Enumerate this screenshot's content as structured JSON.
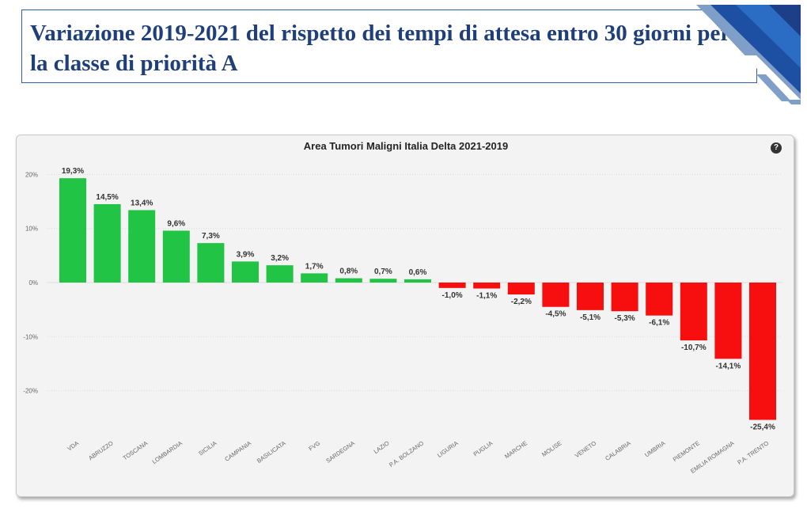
{
  "slide": {
    "title": "Variazione 2019-2021 del rispetto dei tempi di attesa entro 30 giorni per la classe di priorità A"
  },
  "colors": {
    "positive": "#21c444",
    "negative": "#f70e0e",
    "title": "#1f3f7a"
  },
  "icons": {
    "help": "help-circle-icon"
  },
  "help_glyph": "?",
  "chart_data": {
    "type": "bar",
    "title": "Area Tumori Maligni Italia Delta 2021-2019",
    "categories": [
      "VDA",
      "ABRUZZO",
      "TOSCANA",
      "LOMBARDIA",
      "SICILIA",
      "CAMPANIA",
      "BASILICATA",
      "FVG",
      "SARDEGNA",
      "LAZIO",
      "P.A. BOLZANO",
      "LIGURIA",
      "PUGLIA",
      "MARCHE",
      "MOLISE",
      "VENETO",
      "CALABRIA",
      "UMBRIA",
      "PIEMONTE",
      "EMILIA ROMAGNA",
      "P.A. TRENTO"
    ],
    "values": [
      19.3,
      14.5,
      13.4,
      9.6,
      7.3,
      3.9,
      3.2,
      1.7,
      0.8,
      0.7,
      0.6,
      -1.0,
      -1.1,
      -2.2,
      -4.5,
      -5.1,
      -5.3,
      -6.1,
      -10.7,
      -14.1,
      -25.4
    ],
    "data_labels": [
      "19,3%",
      "14,5%",
      "13,4%",
      "9,6%",
      "7,3%",
      "3,9%",
      "3,2%",
      "1,7%",
      "0,8%",
      "0,7%",
      "0,6%",
      "-1,0%",
      "-1,1%",
      "-2,2%",
      "-4,5%",
      "-5,1%",
      "-5,3%",
      "-6,1%",
      "-10,7%",
      "-14,1%",
      "-25,4%"
    ],
    "yticks": [
      20,
      10,
      0,
      -10,
      -20
    ],
    "ytick_labels": [
      "20%",
      "10%",
      "0%",
      "-10%",
      "-20%"
    ],
    "ylim": [
      -27,
      21
    ],
    "grid": true,
    "xlabel": "",
    "ylabel": ""
  }
}
